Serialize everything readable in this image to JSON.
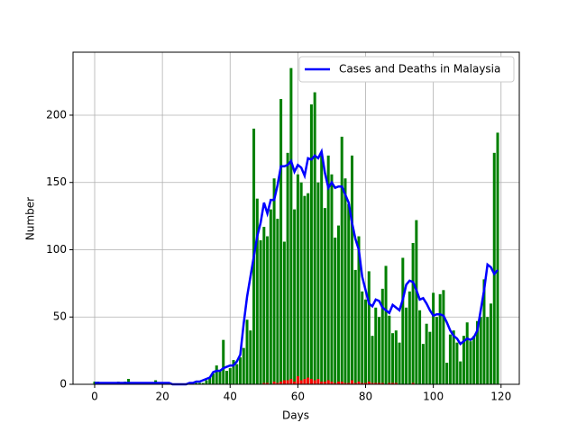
{
  "chart_data": {
    "type": "bar",
    "xlabel": "Days",
    "ylabel": "Number",
    "xlim": [
      -6.39,
      125.39
    ],
    "ylim": [
      0,
      246.8
    ],
    "xticks": [
      0,
      20,
      40,
      60,
      80,
      100,
      120
    ],
    "yticks": [
      0,
      50,
      100,
      150,
      200
    ],
    "grid": true,
    "legend": "upper right",
    "x": [
      0,
      1,
      2,
      3,
      4,
      5,
      6,
      7,
      8,
      9,
      10,
      11,
      12,
      13,
      14,
      15,
      16,
      17,
      18,
      19,
      20,
      21,
      22,
      23,
      24,
      25,
      26,
      27,
      28,
      29,
      30,
      31,
      32,
      33,
      34,
      35,
      36,
      37,
      38,
      39,
      40,
      41,
      42,
      43,
      44,
      45,
      46,
      47,
      48,
      49,
      50,
      51,
      52,
      53,
      54,
      55,
      56,
      57,
      58,
      59,
      60,
      61,
      62,
      63,
      64,
      65,
      66,
      67,
      68,
      69,
      70,
      71,
      72,
      73,
      74,
      75,
      76,
      77,
      78,
      79,
      80,
      81,
      82,
      83,
      84,
      85,
      86,
      87,
      88,
      89,
      90,
      91,
      92,
      93,
      94,
      95,
      96,
      97,
      98,
      99,
      100,
      101,
      102,
      103,
      104,
      105,
      106,
      107,
      108,
      109,
      110,
      111,
      112,
      113,
      114,
      115,
      116,
      117,
      118,
      119
    ],
    "series": [
      {
        "type": "bar",
        "color": "#008000",
        "values": [
          2,
          2,
          0,
          1,
          1,
          1,
          1,
          2,
          1,
          2,
          4,
          1,
          1,
          1,
          1,
          1,
          1,
          1,
          3,
          1,
          1,
          1,
          0,
          0,
          0,
          0,
          0,
          0,
          0,
          1,
          1,
          1,
          1,
          3,
          5,
          8,
          14,
          10,
          33,
          10,
          12,
          18,
          15,
          20,
          27,
          48,
          40,
          190,
          138,
          107,
          117,
          110,
          130,
          153,
          123,
          212,
          106,
          172,
          235,
          130,
          156,
          150,
          140,
          142,
          208,
          217,
          150,
          170,
          131,
          170,
          156,
          109,
          118,
          184,
          153,
          134,
          170,
          85,
          110,
          69,
          63,
          84,
          36,
          57,
          50,
          71,
          88,
          51,
          38,
          40,
          31,
          94,
          57,
          69,
          105,
          122,
          55,
          30,
          45,
          39,
          68,
          50,
          67,
          70,
          16,
          37,
          40,
          31,
          17,
          36,
          46,
          32,
          36,
          47,
          50,
          78,
          50,
          60,
          172,
          187
        ]
      },
      {
        "type": "bar",
        "color": "#ff0000",
        "values": [
          0,
          0,
          0,
          0,
          0,
          0,
          0,
          0,
          0,
          0,
          0,
          0,
          0,
          0,
          0,
          0,
          0,
          0,
          0,
          0,
          0,
          0,
          0,
          0,
          0,
          0,
          0,
          0,
          0,
          0,
          0,
          0,
          0,
          0,
          0,
          0,
          0,
          0,
          0,
          0,
          0,
          0,
          0,
          0,
          0,
          0,
          0,
          0,
          0,
          0,
          1,
          1,
          0,
          2,
          1,
          2,
          3,
          3,
          4,
          2,
          6,
          3,
          4,
          5,
          4,
          3,
          4,
          2,
          2,
          3,
          2,
          1,
          2,
          2,
          1,
          1,
          3,
          1,
          2,
          1,
          1,
          2,
          1,
          1,
          1,
          1,
          0,
          1,
          1,
          1,
          0,
          0,
          0,
          0,
          1,
          0,
          0,
          0,
          0,
          0,
          0,
          0,
          0,
          0,
          0,
          0,
          0,
          0,
          0,
          0,
          0,
          0,
          0,
          0,
          0,
          0,
          0,
          0,
          0,
          0
        ]
      },
      {
        "type": "line",
        "name": "Cases and Deaths in Malaysia",
        "color": "#0000ff",
        "values": [
          1,
          1,
          1,
          1,
          1,
          1,
          1,
          1,
          1,
          1,
          1,
          1,
          1,
          1,
          1,
          1,
          1,
          1,
          1,
          1,
          1,
          1,
          1,
          0,
          0,
          0,
          0,
          0,
          1,
          1,
          2,
          2,
          3,
          4,
          5,
          9,
          10,
          10,
          12,
          13,
          14,
          14,
          17,
          22,
          45,
          65,
          80,
          95,
          110,
          120,
          135,
          127,
          137,
          137,
          148,
          162,
          162,
          163,
          166,
          158,
          163,
          161,
          155,
          168,
          167,
          170,
          168,
          173,
          157,
          146,
          150,
          146,
          147,
          147,
          141,
          135,
          120,
          108,
          100,
          80,
          70,
          60,
          58,
          63,
          62,
          57,
          55,
          53,
          59,
          57,
          55,
          63,
          74,
          77,
          76,
          70,
          63,
          64,
          60,
          55,
          51,
          52,
          52,
          51,
          46,
          40,
          36,
          34,
          30,
          32,
          34,
          33,
          35,
          40,
          55,
          70,
          89,
          87,
          82,
          85
        ]
      }
    ]
  }
}
